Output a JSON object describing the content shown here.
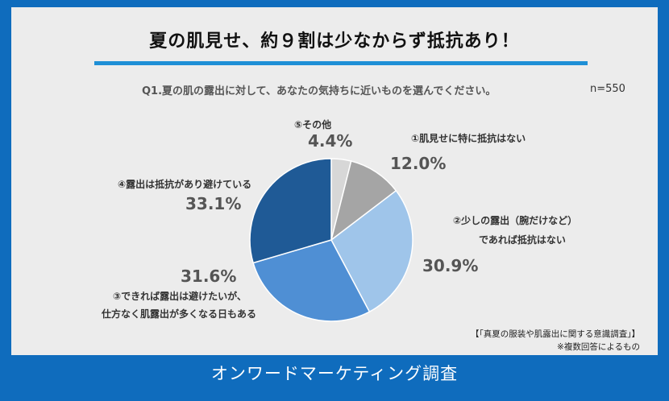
{
  "title": "夏の肌見せ、約９割は少なからず抵抗あり！",
  "question": "Q1.夏の肌の露出に対して、あなたの気持ちに近いものを選んでください。",
  "sample_size": "n=550",
  "source": {
    "survey_name": "【「真夏の服装や肌露出に関する意識調査」】",
    "note": "※複数回答によるもの"
  },
  "footer": "オンワードマーケティング調査",
  "chart_data": {
    "type": "pie",
    "title": "Q1.夏の肌の露出に対して、あなたの気持ちに近いものを選んでください。",
    "start_angle_deg": 0,
    "direction": "clockwise",
    "slices": [
      {
        "label": "⑤その他",
        "label_lines": [
          "⑤その他"
        ],
        "value": 4.4,
        "pct_text": "4.4%",
        "color": "#d7d7d7"
      },
      {
        "label": "①肌見せに特に抵抗はない",
        "label_lines": [
          "①肌見せに特に抵抗はない"
        ],
        "value": 12.0,
        "pct_text": "12.0%",
        "color": "#a5a5a5"
      },
      {
        "label": "②少しの露出（腕だけなど）であれば抵抗はない",
        "label_lines": [
          "②少しの露出（腕だけなど）",
          "であれば抵抗はない"
        ],
        "value": 30.9,
        "pct_text": "30.9%",
        "color": "#9fc5ea"
      },
      {
        "label": "③できれば露出は避けたいが、仕方なく肌露出が多くなる日もある",
        "label_lines": [
          "③できれば露出は避けたいが、",
          "仕方なく肌露出が多くなる日もある"
        ],
        "value": 31.6,
        "pct_text": "31.6%",
        "color": "#4f8fd4"
      },
      {
        "label": "④露出は抵抗があり避けている",
        "label_lines": [
          "④露出は抵抗があり避けている"
        ],
        "value": 33.1,
        "pct_text": "33.1%",
        "color": "#1f5a96"
      }
    ]
  }
}
